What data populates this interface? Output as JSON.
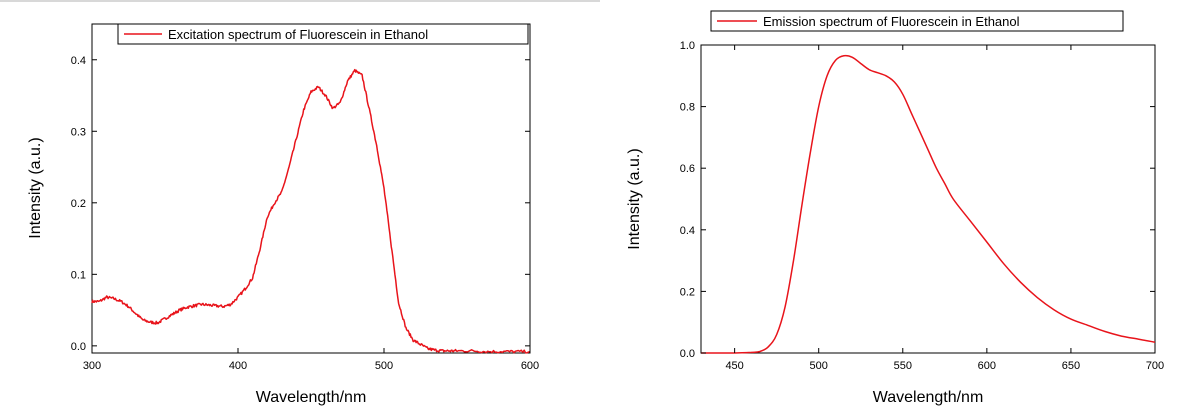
{
  "chart_data": [
    {
      "type": "line",
      "title": "",
      "xlabel": "Wavelength/nm",
      "ylabel": "Intensity (a.u.)",
      "xlim": [
        300,
        600
      ],
      "ylim": [
        -0.01,
        0.45
      ],
      "x_ticks": [
        300,
        400,
        500,
        600
      ],
      "y_ticks": [
        0.0,
        0.1,
        0.2,
        0.3,
        0.4
      ],
      "y_tick_labels": [
        "0.0",
        "0.1",
        "0.2",
        "0.3",
        "0.4"
      ],
      "grid": false,
      "legend_position": "top-center",
      "color": "#e8141b",
      "noise": true,
      "series": [
        {
          "name": "Excitation spectrum of Fluorescein in Ethanol",
          "x": [
            300,
            305,
            310,
            315,
            320,
            325,
            330,
            335,
            340,
            345,
            350,
            355,
            360,
            365,
            370,
            375,
            380,
            385,
            390,
            395,
            400,
            405,
            410,
            415,
            420,
            425,
            430,
            435,
            440,
            445,
            450,
            455,
            460,
            465,
            470,
            475,
            480,
            485,
            490,
            495,
            500,
            505,
            510,
            515,
            520,
            525,
            530,
            535,
            540,
            545,
            550,
            560,
            570,
            580,
            590,
            600
          ],
          "y": [
            0.062,
            0.062,
            0.068,
            0.066,
            0.062,
            0.055,
            0.045,
            0.036,
            0.033,
            0.032,
            0.038,
            0.044,
            0.05,
            0.054,
            0.056,
            0.058,
            0.057,
            0.056,
            0.055,
            0.058,
            0.068,
            0.08,
            0.095,
            0.135,
            0.18,
            0.2,
            0.215,
            0.25,
            0.29,
            0.33,
            0.355,
            0.362,
            0.35,
            0.332,
            0.34,
            0.37,
            0.385,
            0.378,
            0.33,
            0.28,
            0.22,
            0.14,
            0.06,
            0.025,
            0.008,
            0.002,
            -0.004,
            -0.006,
            -0.007,
            -0.007,
            -0.007,
            -0.007,
            -0.008,
            -0.008,
            -0.008,
            -0.008
          ]
        }
      ]
    },
    {
      "type": "line",
      "title": "",
      "xlabel": "Wavelength/nm",
      "ylabel": "Intensity (a.u.)",
      "xlim": [
        430,
        700
      ],
      "ylim": [
        0.0,
        1.0
      ],
      "x_ticks": [
        450,
        500,
        550,
        600,
        650,
        700
      ],
      "y_ticks": [
        0.0,
        0.2,
        0.4,
        0.6,
        0.8,
        1.0
      ],
      "y_tick_labels": [
        "0.0",
        "0.2",
        "0.4",
        "0.6",
        "0.8",
        "1.0"
      ],
      "grid": false,
      "legend_position": "top-center",
      "color": "#e8141b",
      "noise": false,
      "series": [
        {
          "name": "Emission spectrum of Fluorescein in Ethanol",
          "x": [
            430,
            440,
            450,
            460,
            465,
            470,
            475,
            480,
            485,
            490,
            495,
            500,
            505,
            510,
            515,
            520,
            525,
            530,
            535,
            540,
            545,
            550,
            555,
            560,
            565,
            570,
            575,
            580,
            590,
            600,
            610,
            620,
            630,
            640,
            650,
            660,
            670,
            680,
            690,
            700
          ],
          "y": [
            0.0,
            0.0,
            0.0,
            0.002,
            0.005,
            0.02,
            0.06,
            0.15,
            0.3,
            0.48,
            0.65,
            0.8,
            0.9,
            0.95,
            0.965,
            0.96,
            0.94,
            0.92,
            0.91,
            0.9,
            0.88,
            0.84,
            0.78,
            0.72,
            0.66,
            0.6,
            0.55,
            0.5,
            0.43,
            0.36,
            0.29,
            0.23,
            0.18,
            0.14,
            0.11,
            0.09,
            0.07,
            0.055,
            0.045,
            0.035
          ]
        }
      ]
    }
  ]
}
